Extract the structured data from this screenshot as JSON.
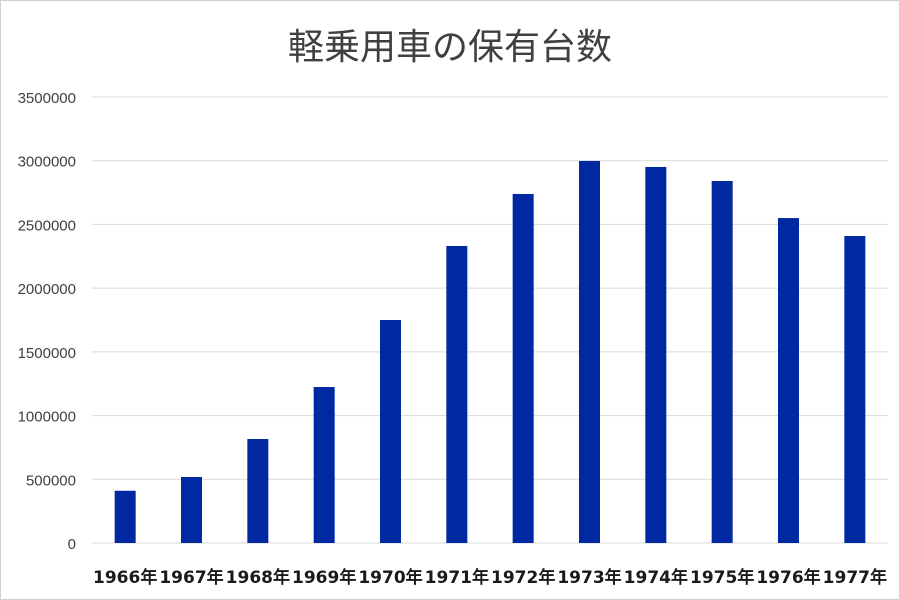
{
  "chart_data": {
    "type": "bar",
    "title": "軽乗用車の保有台数",
    "categories": [
      "1966年",
      "1967年",
      "1968年",
      "1969年",
      "1970年",
      "1971年",
      "1972年",
      "1973年",
      "1974年",
      "1975年",
      "1976年",
      "1977年"
    ],
    "values": [
      410000,
      518000,
      816000,
      1224000,
      1750000,
      2331000,
      2739000,
      2998000,
      2951000,
      2841000,
      2550000,
      2409000
    ],
    "xlabel": "",
    "ylabel": "",
    "ylim": [
      0,
      3500000
    ],
    "yticks": [
      "0",
      "500000",
      "1000000",
      "1500000",
      "2000000",
      "2500000",
      "3000000",
      "3500000"
    ],
    "grid": true,
    "legend": "none",
    "bar_color": "#0028a0"
  }
}
